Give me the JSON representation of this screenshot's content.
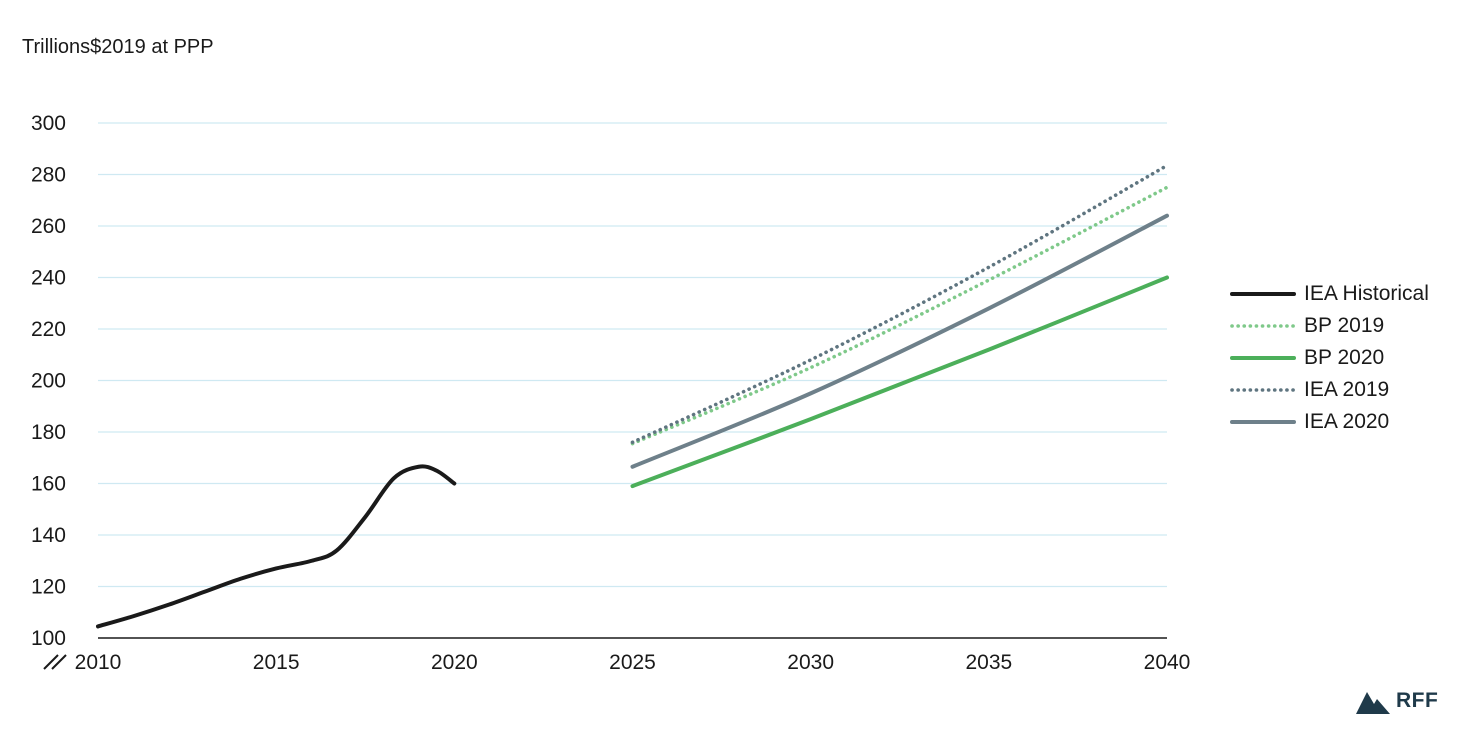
{
  "chart_data": {
    "type": "line",
    "unit_label": "Trillions$2019 at PPP",
    "ylim": [
      100,
      300
    ],
    "yticks": [
      100,
      120,
      140,
      160,
      180,
      200,
      220,
      240,
      260,
      280,
      300
    ],
    "xlim": [
      2010,
      2040
    ],
    "xticks": [
      2010,
      2015,
      2020,
      2025,
      2030,
      2035,
      2040
    ],
    "grid": true,
    "legend_position": "right",
    "series": [
      {
        "name": "IEA Historical",
        "color": "#1a1a1a",
        "style": "solid",
        "x": [
          2010,
          2011,
          2012,
          2013,
          2014,
          2015,
          2016,
          2016.7,
          2017.5,
          2018.3,
          2019,
          2019.5,
          2020
        ],
        "y": [
          104.5,
          108.5,
          113,
          118,
          123,
          127,
          130,
          134,
          147,
          162,
          166.5,
          165,
          160
        ]
      },
      {
        "name": "BP 2019",
        "color": "#7fc98a",
        "style": "dotted",
        "x": [
          2025,
          2030,
          2035,
          2040
        ],
        "y": [
          175.5,
          205,
          239,
          275
        ]
      },
      {
        "name": "BP 2020",
        "color": "#4caf5a",
        "style": "solid",
        "x": [
          2025,
          2030,
          2035,
          2040
        ],
        "y": [
          159,
          185,
          212,
          240
        ]
      },
      {
        "name": "IEA 2019",
        "color": "#5f7580",
        "style": "dotted",
        "x": [
          2025,
          2030,
          2035,
          2040
        ],
        "y": [
          176,
          208,
          244,
          283.5
        ]
      },
      {
        "name": "IEA 2020",
        "color": "#6e808a",
        "style": "solid",
        "x": [
          2025,
          2030,
          2035,
          2040
        ],
        "y": [
          166.5,
          195,
          228,
          264
        ]
      }
    ]
  },
  "logo": {
    "text": "RFF",
    "color": "#1f3a4a",
    "icon": "mountain-logo-icon"
  },
  "colors": {
    "grid": "#cfe9f2",
    "axis": "#1a1a1a"
  }
}
